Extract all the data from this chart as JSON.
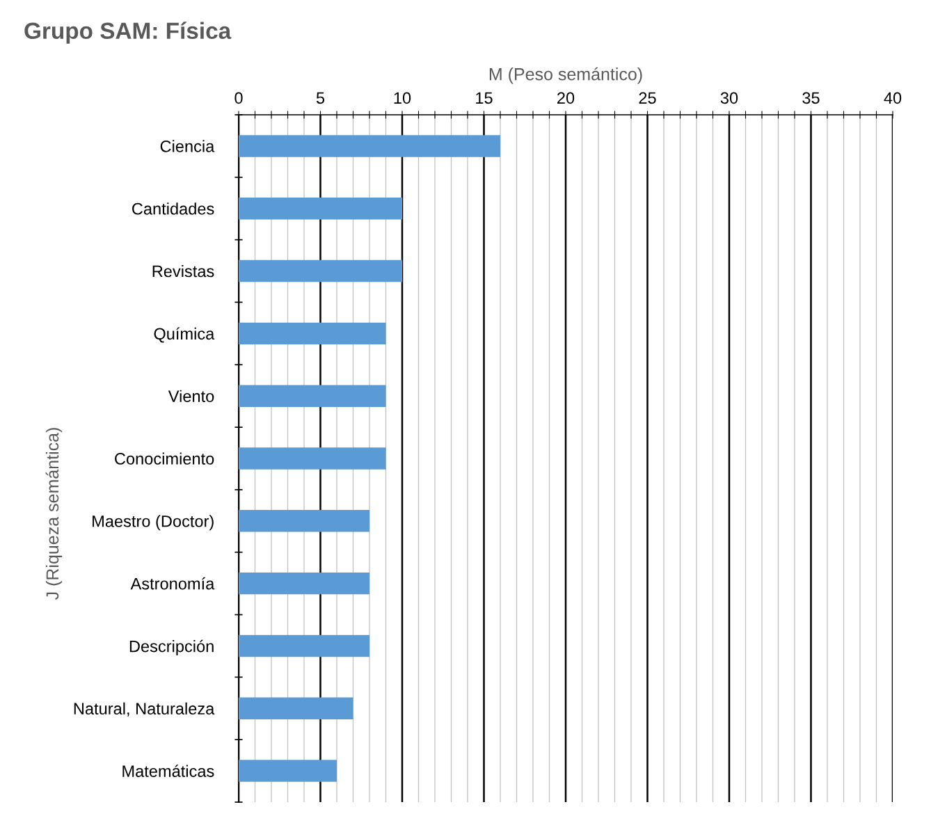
{
  "chart_data": {
    "type": "bar",
    "orientation": "horizontal",
    "title": "Grupo SAM: Física",
    "xlabel": "M (Peso semántico)",
    "ylabel": "J (Riqueza semántica)",
    "categories": [
      "Ciencia",
      "Cantidades",
      "Revistas",
      "Química",
      "Viento",
      "Conocimiento",
      "Maestro (Doctor)",
      "Astronomía",
      "Descripción",
      "Natural, Naturaleza",
      "Matemáticas"
    ],
    "values": [
      16,
      10,
      10,
      9,
      9,
      9,
      8,
      8,
      8,
      7,
      6
    ],
    "color": "#5b9bd5",
    "xlim": [
      0,
      40
    ],
    "xticks": [
      0,
      {
        "value": 1,
        "label": null
      },
      {
        "value": 2,
        "label": null
      },
      {
        "value": 3,
        "label": null
      },
      {
        "value": 4,
        "label": null
      },
      5,
      {
        "value": 6,
        "label": null
      },
      {
        "value": 7,
        "label": null
      },
      {
        "value": 8,
        "label": null
      },
      {
        "value": 9,
        "label": null
      },
      10,
      {
        "value": 11,
        "label": null
      },
      {
        "value": 12,
        "label": null
      },
      {
        "value": 13,
        "label": null
      },
      {
        "value": 14,
        "label": null
      },
      15,
      {
        "value": 16,
        "label": null
      },
      {
        "value": 17,
        "label": null
      },
      {
        "value": 18,
        "label": null
      },
      {
        "value": 19,
        "label": null
      },
      20,
      {
        "value": 21,
        "label": null
      },
      {
        "value": 22,
        "label": null
      },
      {
        "value": 23,
        "label": null
      },
      {
        "value": 24,
        "label": null
      },
      25,
      {
        "value": 26,
        "label": null
      },
      {
        "value": 27,
        "label": null
      },
      {
        "value": 28,
        "label": null
      },
      {
        "value": 29,
        "label": null
      },
      30,
      {
        "value": 31,
        "label": null
      },
      {
        "value": 32,
        "label": null
      },
      {
        "value": 33,
        "label": null
      },
      {
        "value": 34,
        "label": null
      },
      35,
      {
        "value": 36,
        "label": null
      },
      {
        "value": 37,
        "label": null
      },
      {
        "value": 38,
        "label": null
      },
      {
        "value": 39,
        "label": null
      },
      40
    ],
    "grid": "x"
  }
}
